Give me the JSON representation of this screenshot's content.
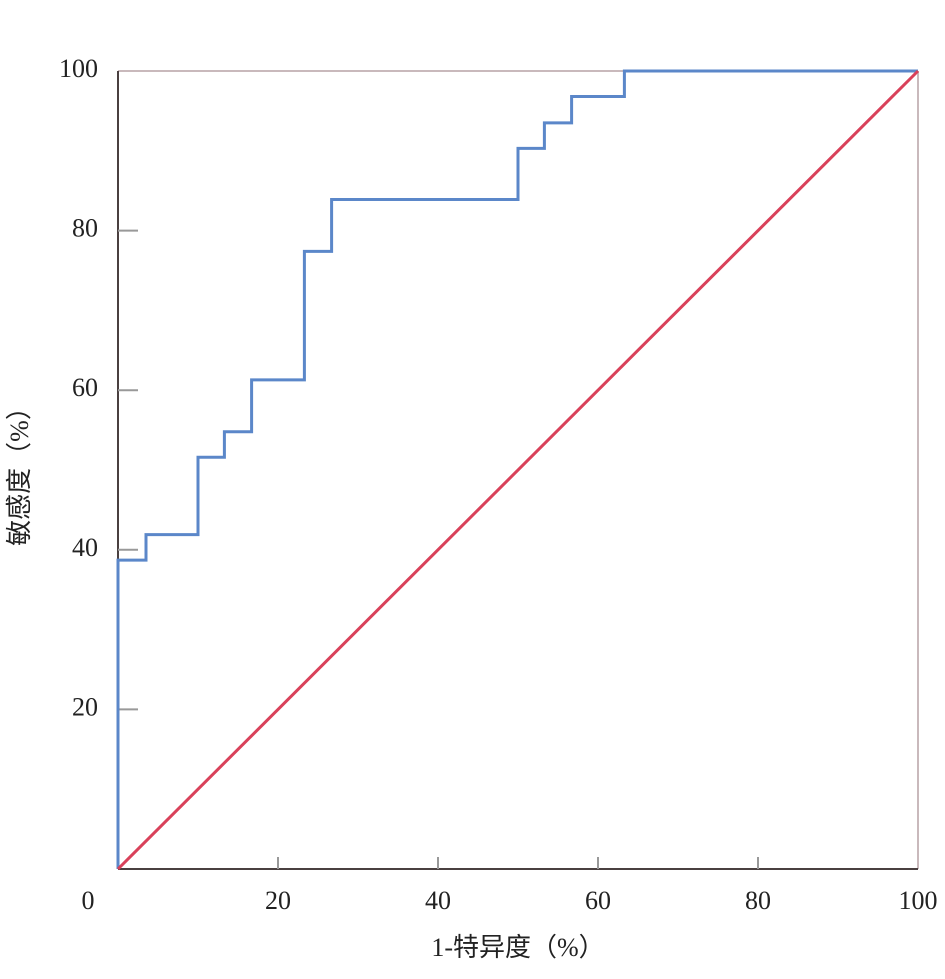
{
  "chart_data": {
    "type": "line",
    "x_label": "1-特异度（%）",
    "y_label": "敏感度（%）",
    "xlim": [
      0,
      100
    ],
    "ylim": [
      0,
      100
    ],
    "xticks": [
      0,
      20,
      40,
      60,
      80,
      100
    ],
    "yticks": [
      20,
      40,
      60,
      80,
      100
    ],
    "grid": false,
    "series": [
      {
        "color": "#5b87c9",
        "x": [
          0,
          0,
          3.5,
          3.5,
          10,
          10,
          13.3,
          13.3,
          16.7,
          16.7,
          23.3,
          23.3,
          26.7,
          26.7,
          50,
          50,
          53.3,
          53.3,
          56.7,
          56.7,
          63.3,
          63.3,
          100
        ],
        "values": [
          0,
          38.7,
          38.7,
          41.9,
          41.9,
          51.6,
          51.6,
          54.8,
          54.8,
          61.3,
          61.3,
          77.4,
          77.4,
          83.9,
          83.9,
          90.3,
          90.3,
          93.5,
          93.5,
          96.8,
          96.8,
          100,
          100
        ]
      },
      {
        "color": "#d9415a",
        "x": [
          0,
          100
        ],
        "values": [
          0,
          100
        ]
      }
    ]
  }
}
